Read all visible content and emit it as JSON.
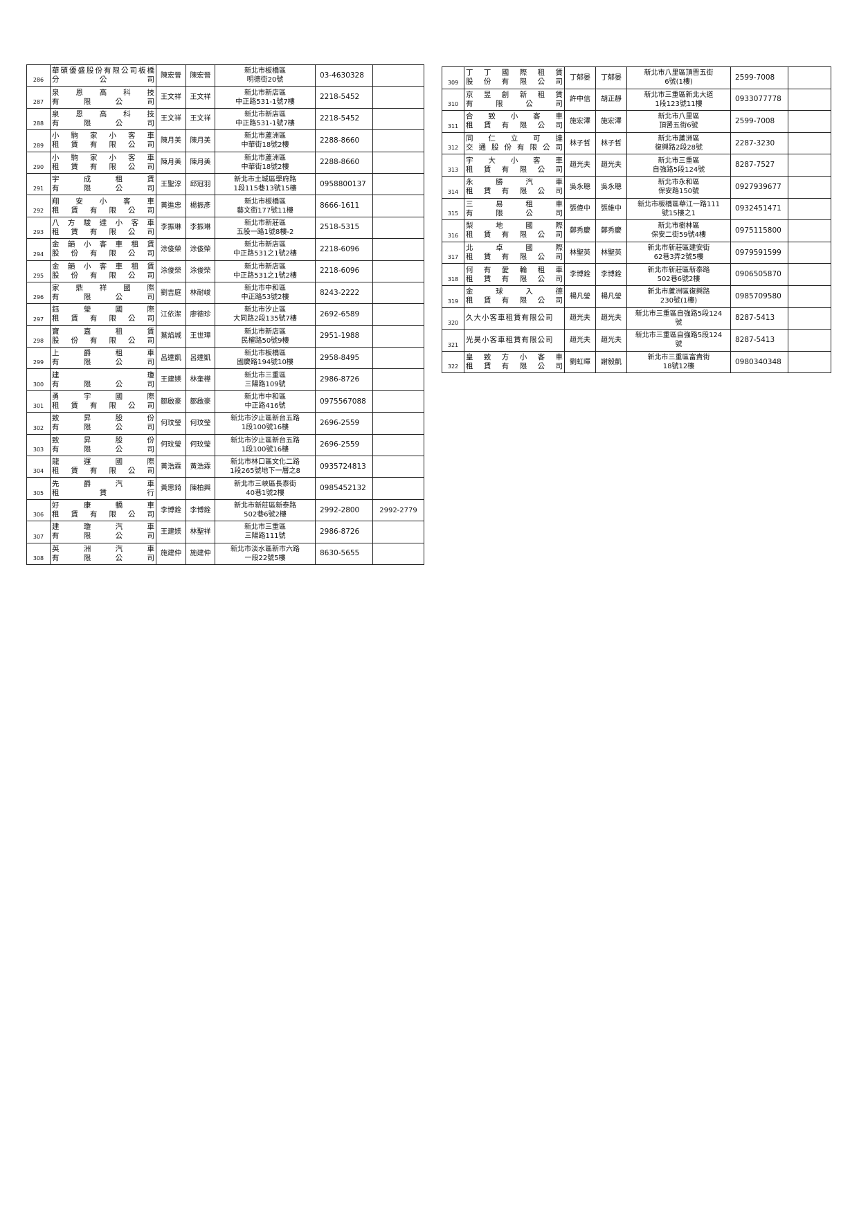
{
  "tables": [
    {
      "rows": [
        {
          "no": 286,
          "company": [
            "華碩優盛股份有限公司板橋",
            "分公司"
          ],
          "owner": "陳宏晉",
          "manager": "陳宏晉",
          "address": [
            "新北市板橋區",
            "明德街20號"
          ],
          "phone": "03-4630328"
        },
        {
          "no": 287,
          "company": [
            "泉恩高科技",
            "有限公司"
          ],
          "owner": "王文祥",
          "manager": "王文祥",
          "address": [
            "新北市新店區",
            "中正路531-1號7樓"
          ],
          "phone": "2218-5452"
        },
        {
          "no": 288,
          "company": [
            "泉恩高科技",
            "有限公司"
          ],
          "owner": "王文祥",
          "manager": "王文祥",
          "address": [
            "新北市新店區",
            "中正路531-1號7樓"
          ],
          "phone": "2218-5452"
        },
        {
          "no": 289,
          "company": [
            "小駒家小客車",
            "租賃有限公司"
          ],
          "owner": "陳月美",
          "manager": "陳月美",
          "address": [
            "新北市蘆洲區",
            "中華街18號2樓"
          ],
          "phone": "2288-8660"
        },
        {
          "no": 290,
          "company": [
            "小駒家小客車",
            "租賃有限公司"
          ],
          "owner": "陳月美",
          "manager": "陳月美",
          "address": [
            "新北市蘆洲區",
            "中華街18號2樓"
          ],
          "phone": "2288-8660"
        },
        {
          "no": 291,
          "company": [
            "宇成租賃",
            "有限公司"
          ],
          "owner": "王聖淳",
          "manager": "邱冠羽",
          "address": [
            "新北市土城區學府路",
            "1段115巷13號15樓"
          ],
          "phone": "0958800137"
        },
        {
          "no": 292,
          "company": [
            "翔安小客車",
            "租賃有限公司"
          ],
          "owner": "黃進忠",
          "manager": "楊振彥",
          "address": [
            "新北市板橋區",
            "藝文街177號11樓"
          ],
          "phone": "8666-1611"
        },
        {
          "no": 293,
          "company": [
            "八方駿達小客車",
            "租賃有限公司"
          ],
          "owner": "李振琳",
          "manager": "李振琳",
          "address": [
            "新北市新莊區",
            "五股一路1號8樓-2"
          ],
          "phone": "2518-5315"
        },
        {
          "no": 294,
          "company": [
            "金韻小客車租賃",
            "股份有限公司"
          ],
          "owner": "涂俊榮",
          "manager": "涂俊榮",
          "address": [
            "新北市新店區",
            "中正路531之1號2樓"
          ],
          "phone": "2218-6096"
        },
        {
          "no": 295,
          "company": [
            "金韻小客車租賃",
            "股份有限公司"
          ],
          "owner": "涂俊榮",
          "manager": "涂俊榮",
          "address": [
            "新北市新店區",
            "中正路531之1號2樓"
          ],
          "phone": "2218-6096"
        },
        {
          "no": 296,
          "company": [
            "家鼎祥國際",
            "有限公司"
          ],
          "owner": "劉吉庭",
          "manager": "林耐峻",
          "address": [
            "新北市中和區",
            "中正路53號2樓"
          ],
          "phone": "8243-2222"
        },
        {
          "no": 297,
          "company": [
            "鈺瑩國際",
            "租賃有限公司"
          ],
          "owner": "江依潔",
          "manager": "廖德珍",
          "address": [
            "新北市汐止區",
            "大同路2段135號7樓"
          ],
          "phone": "2692-6589"
        },
        {
          "no": 298,
          "company": [
            "寶嘉租賃",
            "股份有限公司"
          ],
          "owner": "葉焰城",
          "manager": "王世璋",
          "address": [
            "新北市新店區",
            "民權路50號9樓"
          ],
          "phone": "2951-1988"
        },
        {
          "no": 299,
          "company": [
            "上爵租車",
            "有限公司"
          ],
          "owner": "呂達凱",
          "manager": "呂達凱",
          "address": [
            "新北市板橋區",
            "國慶路194號10樓"
          ],
          "phone": "2958-8495"
        },
        {
          "no": 300,
          "company": [
            "建瓊",
            "有限公司"
          ],
          "owner": "王建媄",
          "manager": "林奎樺",
          "address": [
            "新北市三重區",
            "三陽路109號"
          ],
          "phone": "2986-8726"
        },
        {
          "no": 301,
          "company": [
            "勇宇國際",
            "租賃有限公司"
          ],
          "owner": "鄒啟豪",
          "manager": "鄒啟豪",
          "address": [
            "新北市中和區",
            "中正路416號"
          ],
          "phone": "0975567088"
        },
        {
          "no": 302,
          "company": [
            "致昇股份",
            "有限公司"
          ],
          "owner": "何玟瑩",
          "manager": "何玟瑩",
          "address": [
            "新北市汐止區新台五路",
            "1段100號16樓"
          ],
          "phone": "2696-2559"
        },
        {
          "no": 303,
          "company": [
            "致昇股份",
            "有限公司"
          ],
          "owner": "何玟瑩",
          "manager": "何玟瑩",
          "address": [
            "新北市汐止區新台五路",
            "1段100號16樓"
          ],
          "phone": "2696-2559"
        },
        {
          "no": 304,
          "company": [
            "龍運國際",
            "租賃有限公司"
          ],
          "owner": "黃浩霖",
          "manager": "黃浩霖",
          "address": [
            "新北市林口區文化二路",
            "1段265號地下一層之8"
          ],
          "phone": "0935724813"
        },
        {
          "no": 305,
          "company": [
            "先爵汽車",
            "租賃行"
          ],
          "owner": "黃思錡",
          "manager": "陳柏興",
          "address": [
            "新北市三峽區長泰街",
            "40巷1號2樓"
          ],
          "phone": "0985452132"
        },
        {
          "no": 306,
          "company": [
            "好康轎車",
            "租賃有限公司"
          ],
          "owner": "李博銓",
          "manager": "李博銓",
          "address": [
            "新北市新莊區新泰路",
            "502巷6號2樓"
          ],
          "phone": "2992-2800",
          "phone2": "2992-2779"
        },
        {
          "no": 307,
          "company": [
            "建瓊汽車",
            "有限公司"
          ],
          "owner": "王建媄",
          "manager": "林聖祥",
          "address": [
            "新北市三重區",
            "三陽路111號"
          ],
          "phone": "2986-8726"
        },
        {
          "no": 308,
          "company": [
            "英洲汽車",
            "有限公司"
          ],
          "owner": "施建仲",
          "manager": "施建仲",
          "address": [
            "新北市淡水區新市六路",
            "一段22號5樓"
          ],
          "phone": "8630-5655"
        }
      ]
    },
    {
      "rows": [
        {
          "no": 309,
          "company": [
            "丁丁國際租賃",
            "股份有限公司"
          ],
          "owner": "丁郁晏",
          "manager": "丁郁晏",
          "address": [
            "新北市八里區頂罟五街",
            "6號(1樓)"
          ],
          "phone": "2599-7008"
        },
        {
          "no": 310,
          "company": [
            "京昱創新租賃",
            "有限公司"
          ],
          "owner": "許中信",
          "manager": "胡正靜",
          "address": [
            "新北市三重區新北大道",
            "1段123號11樓"
          ],
          "phone": "0933077778"
        },
        {
          "no": 311,
          "company": [
            "合致小客車",
            "租賃有限公司"
          ],
          "owner": "施宏澤",
          "manager": "施宏澤",
          "address": [
            "新北市八里區",
            "頂罟五街6號"
          ],
          "phone": "2599-7008"
        },
        {
          "no": 312,
          "company": [
            "同仁立可達",
            "交通股份有限公司"
          ],
          "owner": "林子哲",
          "manager": "林子哲",
          "address": [
            "新北市蘆洲區",
            "復興路2段28號"
          ],
          "phone": "2287-3230"
        },
        {
          "no": 313,
          "company": [
            "宇大小客車",
            "租賃有限公司"
          ],
          "owner": "趙光夫",
          "manager": "趙光夫",
          "address": [
            "新北市三重區",
            "自強路5段124號"
          ],
          "phone": "8287-7527"
        },
        {
          "no": 314,
          "company": [
            "永勝汽車",
            "租賃有限公司"
          ],
          "owner": "吳永聰",
          "manager": "吳永聰",
          "address": [
            "新北市永和區",
            "保安路150號"
          ],
          "phone": "0927939677"
        },
        {
          "no": 315,
          "company": [
            "三易租車",
            "有限公司"
          ],
          "owner": "張偉中",
          "manager": "張維中",
          "address": [
            "新北市板橋區華江一路111",
            "號15樓之1"
          ],
          "phone": "0932451471"
        },
        {
          "no": 316,
          "company": [
            "梨地國際",
            "租賃有限公司"
          ],
          "owner": "鄭秀慶",
          "manager": "鄭秀慶",
          "address": [
            "新北市樹林區",
            "保安二街59號4樓"
          ],
          "phone": "0975115800"
        },
        {
          "no": 317,
          "company": [
            "北卓國際",
            "租賃有限公司"
          ],
          "owner": "林聖英",
          "manager": "林聖英",
          "address": [
            "新北市新莊區建安街",
            "62巷3弄2號5樓"
          ],
          "phone": "0979591599"
        },
        {
          "no": 318,
          "company": [
            "何有愛輪租車",
            "租賃有限公司"
          ],
          "owner": "李博銓",
          "manager": "李博銓",
          "address": [
            "新北市新莊區新泰路",
            "502巷6號2樓"
          ],
          "phone": "0906505870"
        },
        {
          "no": 319,
          "company": [
            "金球入德",
            "租賃有限公司"
          ],
          "owner": "楊凡瑩",
          "manager": "楊凡瑩",
          "address": [
            "新北市蘆洲區復興路",
            "230號(1樓)"
          ],
          "phone": "0985709580"
        },
        {
          "no": 320,
          "company": [
            "久大小客車租賃有限公司"
          ],
          "owner": "趙光夫",
          "manager": "趙光夫",
          "address": [
            "新北市三重區自強路5段124",
            "號"
          ],
          "phone": "8287-5413"
        },
        {
          "no": 321,
          "company": [
            "光昊小客車租賃有限公司"
          ],
          "owner": "趙光夫",
          "manager": "趙光夫",
          "address": [
            "新北市三重區自強路5段124",
            "號"
          ],
          "phone": "8287-5413"
        },
        {
          "no": 322,
          "company": [
            "皇致方小客車",
            "租賃有限公司"
          ],
          "owner": "劉虹暉",
          "manager": "謝毅凱",
          "address": [
            "新北市三重區富貴街",
            "18號12樓"
          ],
          "phone": "0980340348"
        }
      ]
    }
  ]
}
